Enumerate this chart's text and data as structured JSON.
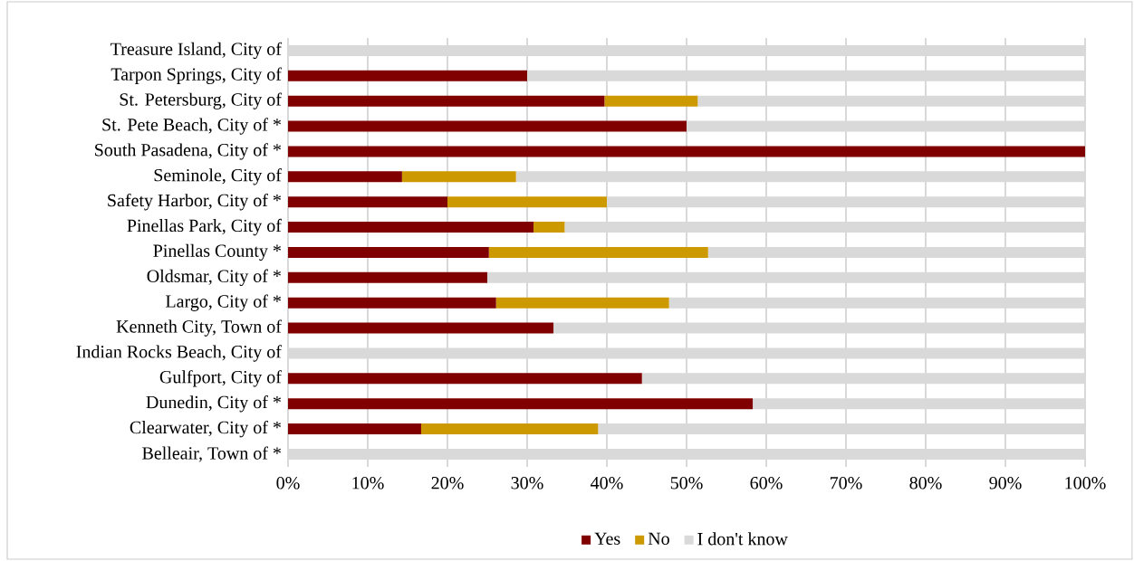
{
  "chart_data": {
    "type": "bar",
    "orientation": "horizontal",
    "stacked": true,
    "categories": [
      "Treasure Island, City of",
      "Tarpon Springs, City of",
      "St. Petersburg, City of",
      "St. Pete Beach, City of *",
      "South Pasadena, City of *",
      "Seminole, City of",
      "Safety Harbor, City of *",
      "Pinellas Park, City of",
      "Pinellas County *",
      "Oldsmar, City of *",
      "Largo, City of *",
      "Kenneth City, Town of",
      "Indian Rocks Beach, City of",
      "Gulfport, City of",
      "Dunedin, City of *",
      "Clearwater, City of *",
      "Belleair, Town of *"
    ],
    "series": [
      {
        "name": "Yes",
        "color": "#800000",
        "values": [
          0,
          30,
          39.7,
          50,
          100,
          14.3,
          20,
          30.8,
          25.2,
          25,
          26.1,
          33.3,
          0,
          44.4,
          58.3,
          16.7,
          0
        ]
      },
      {
        "name": "No",
        "color": "#cc9900",
        "values": [
          0,
          0,
          11.7,
          0,
          0,
          14.3,
          20,
          3.9,
          27.5,
          0,
          21.7,
          0,
          0,
          0,
          0,
          22.2,
          0
        ]
      },
      {
        "name": "I don't know",
        "color": "#d9d9d9",
        "values": [
          100,
          70,
          48.6,
          50,
          0,
          71.4,
          60,
          65.3,
          47.3,
          75,
          52.2,
          66.7,
          100,
          55.6,
          41.7,
          61.1,
          100
        ]
      }
    ],
    "xlim": [
      0,
      100
    ],
    "xticks": [
      {
        "value": 0,
        "label": "0%"
      },
      {
        "value": 10,
        "label": "10%"
      },
      {
        "value": 20,
        "label": "20%"
      },
      {
        "value": 30,
        "label": "30%"
      },
      {
        "value": 40,
        "label": "40%"
      },
      {
        "value": 50,
        "label": "50%"
      },
      {
        "value": 60,
        "label": "60%"
      },
      {
        "value": 70,
        "label": "70%"
      },
      {
        "value": 80,
        "label": "80%"
      },
      {
        "value": 90,
        "label": "90%"
      },
      {
        "value": 100,
        "label": "100%"
      }
    ],
    "grid": "x",
    "legend": "bottom"
  }
}
